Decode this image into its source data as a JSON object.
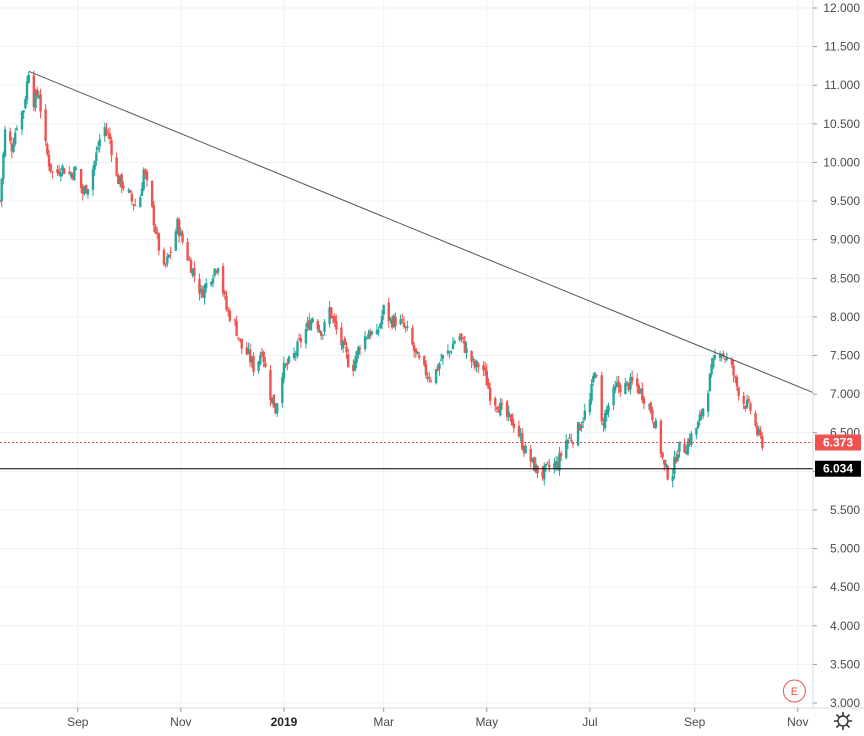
{
  "chart_data": {
    "type": "candlestick",
    "colors": {
      "up": "#26a69a",
      "down": "#ef5350",
      "grid": "#eef1f4",
      "trendline": "#555555",
      "support": "#000000"
    },
    "y_axis": {
      "ticks": [
        "12.000",
        "11.500",
        "11.000",
        "10.500",
        "10.000",
        "9.500",
        "9.000",
        "8.500",
        "8.000",
        "7.500",
        "7.000",
        "6.500",
        "6.000",
        "5.500",
        "5.000",
        "4.500",
        "4.000",
        "3.500",
        "3.000"
      ],
      "tick_values": [
        12.0,
        11.5,
        11.0,
        10.5,
        10.0,
        9.5,
        9.0,
        8.5,
        8.0,
        7.5,
        7.0,
        6.5,
        6.0,
        5.5,
        5.0,
        4.5,
        4.0,
        3.5,
        3.0
      ],
      "range": [
        3.0,
        12.0
      ]
    },
    "x_axis": {
      "ticks": [
        {
          "label": "Sep",
          "date": "2018-09-01",
          "bold": false
        },
        {
          "label": "Nov",
          "date": "2018-11-01",
          "bold": false
        },
        {
          "label": "2019",
          "date": "2019-01-01",
          "bold": true
        },
        {
          "label": "Mar",
          "date": "2019-03-01",
          "bold": false
        },
        {
          "label": "May",
          "date": "2019-05-01",
          "bold": false
        },
        {
          "label": "Jul",
          "date": "2019-07-01",
          "bold": false
        },
        {
          "label": "Sep",
          "date": "2019-09-01",
          "bold": false
        },
        {
          "label": "Nov",
          "date": "2019-11-01",
          "bold": false
        }
      ],
      "range": [
        "2018-07-17",
        "2019-11-10"
      ]
    },
    "price_path": [
      [
        "2018-07-17",
        9.5
      ],
      [
        "2018-07-20",
        10.4
      ],
      [
        "2018-07-24",
        10.2
      ],
      [
        "2018-07-27",
        10.5
      ],
      [
        "2018-07-31",
        10.7
      ],
      [
        "2018-08-03",
        11.2
      ],
      [
        "2018-08-06",
        10.8
      ],
      [
        "2018-08-09",
        10.9
      ],
      [
        "2018-08-12",
        10.3
      ],
      [
        "2018-08-15",
        10.0
      ],
      [
        "2018-08-18",
        9.8
      ],
      [
        "2018-08-22",
        9.95
      ],
      [
        "2018-08-27",
        9.85
      ],
      [
        "2018-08-31",
        9.9
      ],
      [
        "2018-09-04",
        9.6
      ],
      [
        "2018-09-08",
        9.75
      ],
      [
        "2018-09-12",
        10.1
      ],
      [
        "2018-09-16",
        10.5
      ],
      [
        "2018-09-20",
        10.3
      ],
      [
        "2018-09-24",
        9.8
      ],
      [
        "2018-09-28",
        9.7
      ],
      [
        "2018-10-03",
        9.5
      ],
      [
        "2018-10-07",
        9.4
      ],
      [
        "2018-10-10",
        9.9
      ],
      [
        "2018-10-14",
        9.5
      ],
      [
        "2018-10-18",
        9.0
      ],
      [
        "2018-10-22",
        8.6
      ],
      [
        "2018-10-26",
        8.85
      ],
      [
        "2018-10-30",
        9.2
      ],
      [
        "2018-11-03",
        8.9
      ],
      [
        "2018-11-08",
        8.6
      ],
      [
        "2018-11-13",
        8.3
      ],
      [
        "2018-11-18",
        8.5
      ],
      [
        "2018-11-23",
        8.7
      ],
      [
        "2018-11-28",
        8.1
      ],
      [
        "2018-12-03",
        7.9
      ],
      [
        "2018-12-07",
        7.6
      ],
      [
        "2018-12-11",
        7.5
      ],
      [
        "2018-12-15",
        7.3
      ],
      [
        "2018-12-19",
        7.6
      ],
      [
        "2018-12-23",
        7.05
      ],
      [
        "2018-12-27",
        6.8
      ],
      [
        "2018-12-31",
        7.3
      ],
      [
        "2019-01-06",
        7.45
      ],
      [
        "2019-01-12",
        7.75
      ],
      [
        "2019-01-18",
        8.0
      ],
      [
        "2019-01-24",
        7.8
      ],
      [
        "2019-01-28",
        8.1
      ],
      [
        "2019-02-02",
        7.75
      ],
      [
        "2019-02-06",
        7.55
      ],
      [
        "2019-02-10",
        7.3
      ],
      [
        "2019-02-15",
        7.65
      ],
      [
        "2019-02-20",
        7.8
      ],
      [
        "2019-02-25",
        7.75
      ],
      [
        "2019-03-01",
        8.1
      ],
      [
        "2019-03-05",
        7.95
      ],
      [
        "2019-03-10",
        7.95
      ],
      [
        "2019-03-15",
        7.8
      ],
      [
        "2019-03-20",
        7.5
      ],
      [
        "2019-03-25",
        7.3
      ],
      [
        "2019-03-30",
        7.2
      ],
      [
        "2019-04-04",
        7.45
      ],
      [
        "2019-04-09",
        7.55
      ],
      [
        "2019-04-14",
        7.8
      ],
      [
        "2019-04-19",
        7.55
      ],
      [
        "2019-04-24",
        7.35
      ],
      [
        "2019-04-28",
        7.4
      ],
      [
        "2019-05-03",
        7.0
      ],
      [
        "2019-05-08",
        6.85
      ],
      [
        "2019-05-13",
        6.7
      ],
      [
        "2019-05-18",
        6.6
      ],
      [
        "2019-05-23",
        6.3
      ],
      [
        "2019-05-28",
        6.1
      ],
      [
        "2019-06-02",
        5.95
      ],
      [
        "2019-06-07",
        6.05
      ],
      [
        "2019-06-12",
        6.1
      ],
      [
        "2019-06-17",
        6.4
      ],
      [
        "2019-06-22",
        6.45
      ],
      [
        "2019-06-27",
        6.7
      ],
      [
        "2019-07-01",
        6.9
      ],
      [
        "2019-07-04",
        7.35
      ],
      [
        "2019-07-08",
        6.6
      ],
      [
        "2019-07-12",
        6.85
      ],
      [
        "2019-07-17",
        7.1
      ],
      [
        "2019-07-22",
        7.1
      ],
      [
        "2019-07-27",
        7.15
      ],
      [
        "2019-08-01",
        7.0
      ],
      [
        "2019-08-06",
        6.8
      ],
      [
        "2019-08-10",
        6.5
      ],
      [
        "2019-08-14",
        6.05
      ],
      [
        "2019-08-18",
        5.9
      ],
      [
        "2019-08-22",
        6.3
      ],
      [
        "2019-08-26",
        6.3
      ],
      [
        "2019-08-30",
        6.45
      ],
      [
        "2019-09-03",
        6.6
      ],
      [
        "2019-09-07",
        6.9
      ],
      [
        "2019-09-11",
        7.3
      ],
      [
        "2019-09-15",
        7.65
      ],
      [
        "2019-09-18",
        7.5
      ],
      [
        "2019-09-22",
        7.4
      ],
      [
        "2019-09-26",
        7.1
      ],
      [
        "2019-09-30",
        6.9
      ],
      [
        "2019-10-04",
        6.8
      ],
      [
        "2019-10-08",
        6.5
      ],
      [
        "2019-10-11",
        6.373
      ]
    ],
    "trendline": {
      "from": [
        "2018-08-03",
        11.18
      ],
      "to": [
        "2019-11-10",
        7.02
      ]
    },
    "support_line": {
      "value": 6.034,
      "label": "6.034"
    },
    "last_price": {
      "value": 6.373,
      "label": "6.373"
    },
    "earnings_marker": {
      "date": "2019-10-30",
      "label": "E"
    },
    "settings_icon": "gear-icon"
  }
}
